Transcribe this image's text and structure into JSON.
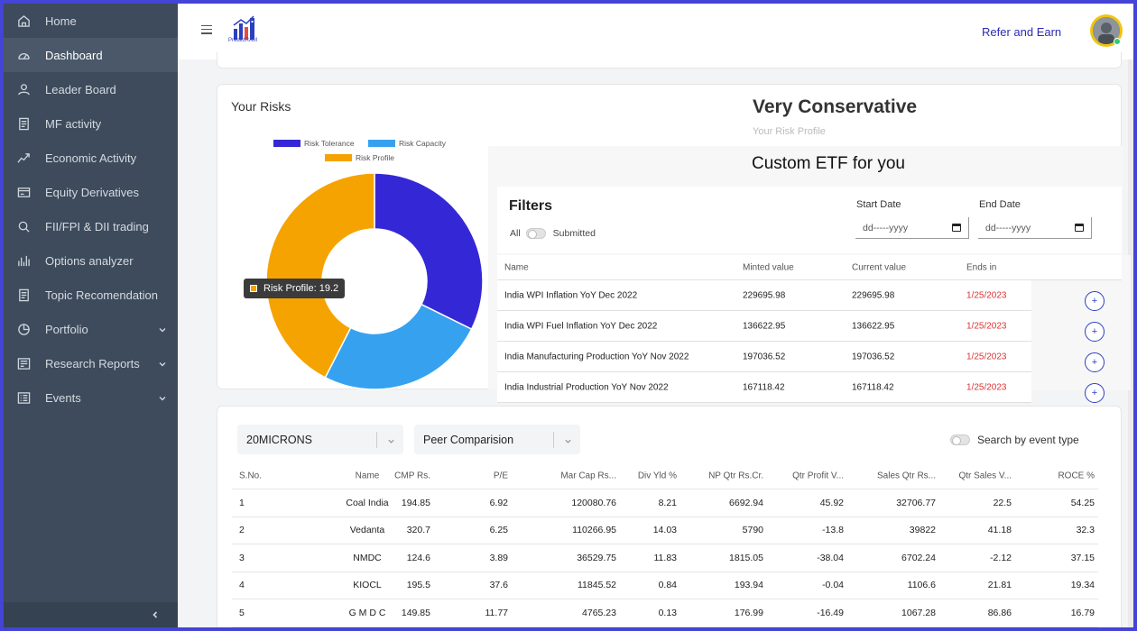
{
  "sidebar": {
    "items": [
      {
        "label": "Home",
        "icon": "home-icon"
      },
      {
        "label": "Dashboard",
        "icon": "gauge-icon"
      },
      {
        "label": "Leader Board",
        "icon": "user-icon"
      },
      {
        "label": "MF activity",
        "icon": "document-icon"
      },
      {
        "label": "Economic Activity",
        "icon": "trend-icon"
      },
      {
        "label": "Equity Derivatives",
        "icon": "card-icon"
      },
      {
        "label": "FII/FPI & DII trading",
        "icon": "search-icon"
      },
      {
        "label": "Options analyzer",
        "icon": "bars-icon"
      },
      {
        "label": "Topic Recomendation",
        "icon": "document-icon"
      },
      {
        "label": "Portfolio",
        "icon": "pie-icon"
      },
      {
        "label": "Research Reports",
        "icon": "report-icon"
      },
      {
        "label": "Events",
        "icon": "list-icon"
      }
    ],
    "active_index": 1
  },
  "header": {
    "logo_text": "PredictRAM",
    "refer": "Refer and Earn"
  },
  "risk": {
    "title": "Your Risks",
    "profile_name": "Very Conservative",
    "profile_label": "Your Risk Profile",
    "tooltip": "Risk Profile: 19.2",
    "legend": [
      {
        "label": "Risk Tolerance",
        "color": "#3428d6"
      },
      {
        "label": "Risk Capacity",
        "color": "#36a2ef"
      },
      {
        "label": "Risk Profile",
        "color": "#f5a300"
      }
    ]
  },
  "chart_data": {
    "type": "pie",
    "variant": "doughnut",
    "labels": [
      "Risk Tolerance",
      "Risk Capacity",
      "Risk Profile"
    ],
    "values": [
      14.6,
      11.4,
      19.2
    ],
    "colors": [
      "#3428d6",
      "#36a2ef",
      "#f5a300"
    ],
    "legend_position": "top"
  },
  "etf": {
    "title": "Custom ETF for you",
    "filters_title": "Filters",
    "toggle_left": "All",
    "toggle_right": "Submitted",
    "start_label": "Start Date",
    "end_label": "End Date",
    "date_placeholder": "dd-----yyyy",
    "columns": [
      "Name",
      "Minted value",
      "Current value",
      "Ends in"
    ],
    "rows": [
      {
        "name": "India WPI Inflation YoY Dec 2022",
        "minted": "229695.98",
        "current": "229695.98",
        "ends": "1/25/2023"
      },
      {
        "name": "India WPI Fuel Inflation YoY Dec 2022",
        "minted": "136622.95",
        "current": "136622.95",
        "ends": "1/25/2023"
      },
      {
        "name": "India Manufacturing Production YoY Nov 2022",
        "minted": "197036.52",
        "current": "197036.52",
        "ends": "1/25/2023"
      },
      {
        "name": "India Industrial Production YoY Nov 2022",
        "minted": "167118.42",
        "current": "167118.42",
        "ends": "1/25/2023"
      }
    ],
    "add_symbol": "+"
  },
  "stocks": {
    "select_stock": "20MICRONS",
    "select_mode": "Peer Comparision",
    "search_label": "Search by event type",
    "columns": [
      "S.No.",
      "Name",
      "CMP Rs.",
      "P/E",
      "Mar Cap Rs...",
      "Div Yld %",
      "NP Qtr Rs.Cr.",
      "Qtr Profit V...",
      "Sales Qtr Rs...",
      "Qtr Sales V...",
      "ROCE %"
    ],
    "rows": [
      [
        "1",
        "Coal India",
        "194.85",
        "6.92",
        "120080.76",
        "8.21",
        "6692.94",
        "45.92",
        "32706.77",
        "22.5",
        "54.25"
      ],
      [
        "2",
        "Vedanta",
        "320.7",
        "6.25",
        "110266.95",
        "14.03",
        "5790",
        "-13.8",
        "39822",
        "41.18",
        "32.3"
      ],
      [
        "3",
        "NMDC",
        "124.6",
        "3.89",
        "36529.75",
        "11.83",
        "1815.05",
        "-38.04",
        "6702.24",
        "-2.12",
        "37.15"
      ],
      [
        "4",
        "KIOCL",
        "195.5",
        "37.6",
        "11845.52",
        "0.84",
        "193.94",
        "-0.04",
        "1106.6",
        "21.81",
        "19.34"
      ],
      [
        "5",
        "G M D C",
        "149.85",
        "11.77",
        "4765.23",
        "0.13",
        "176.99",
        "-16.49",
        "1067.28",
        "86.86",
        "16.79"
      ]
    ]
  }
}
